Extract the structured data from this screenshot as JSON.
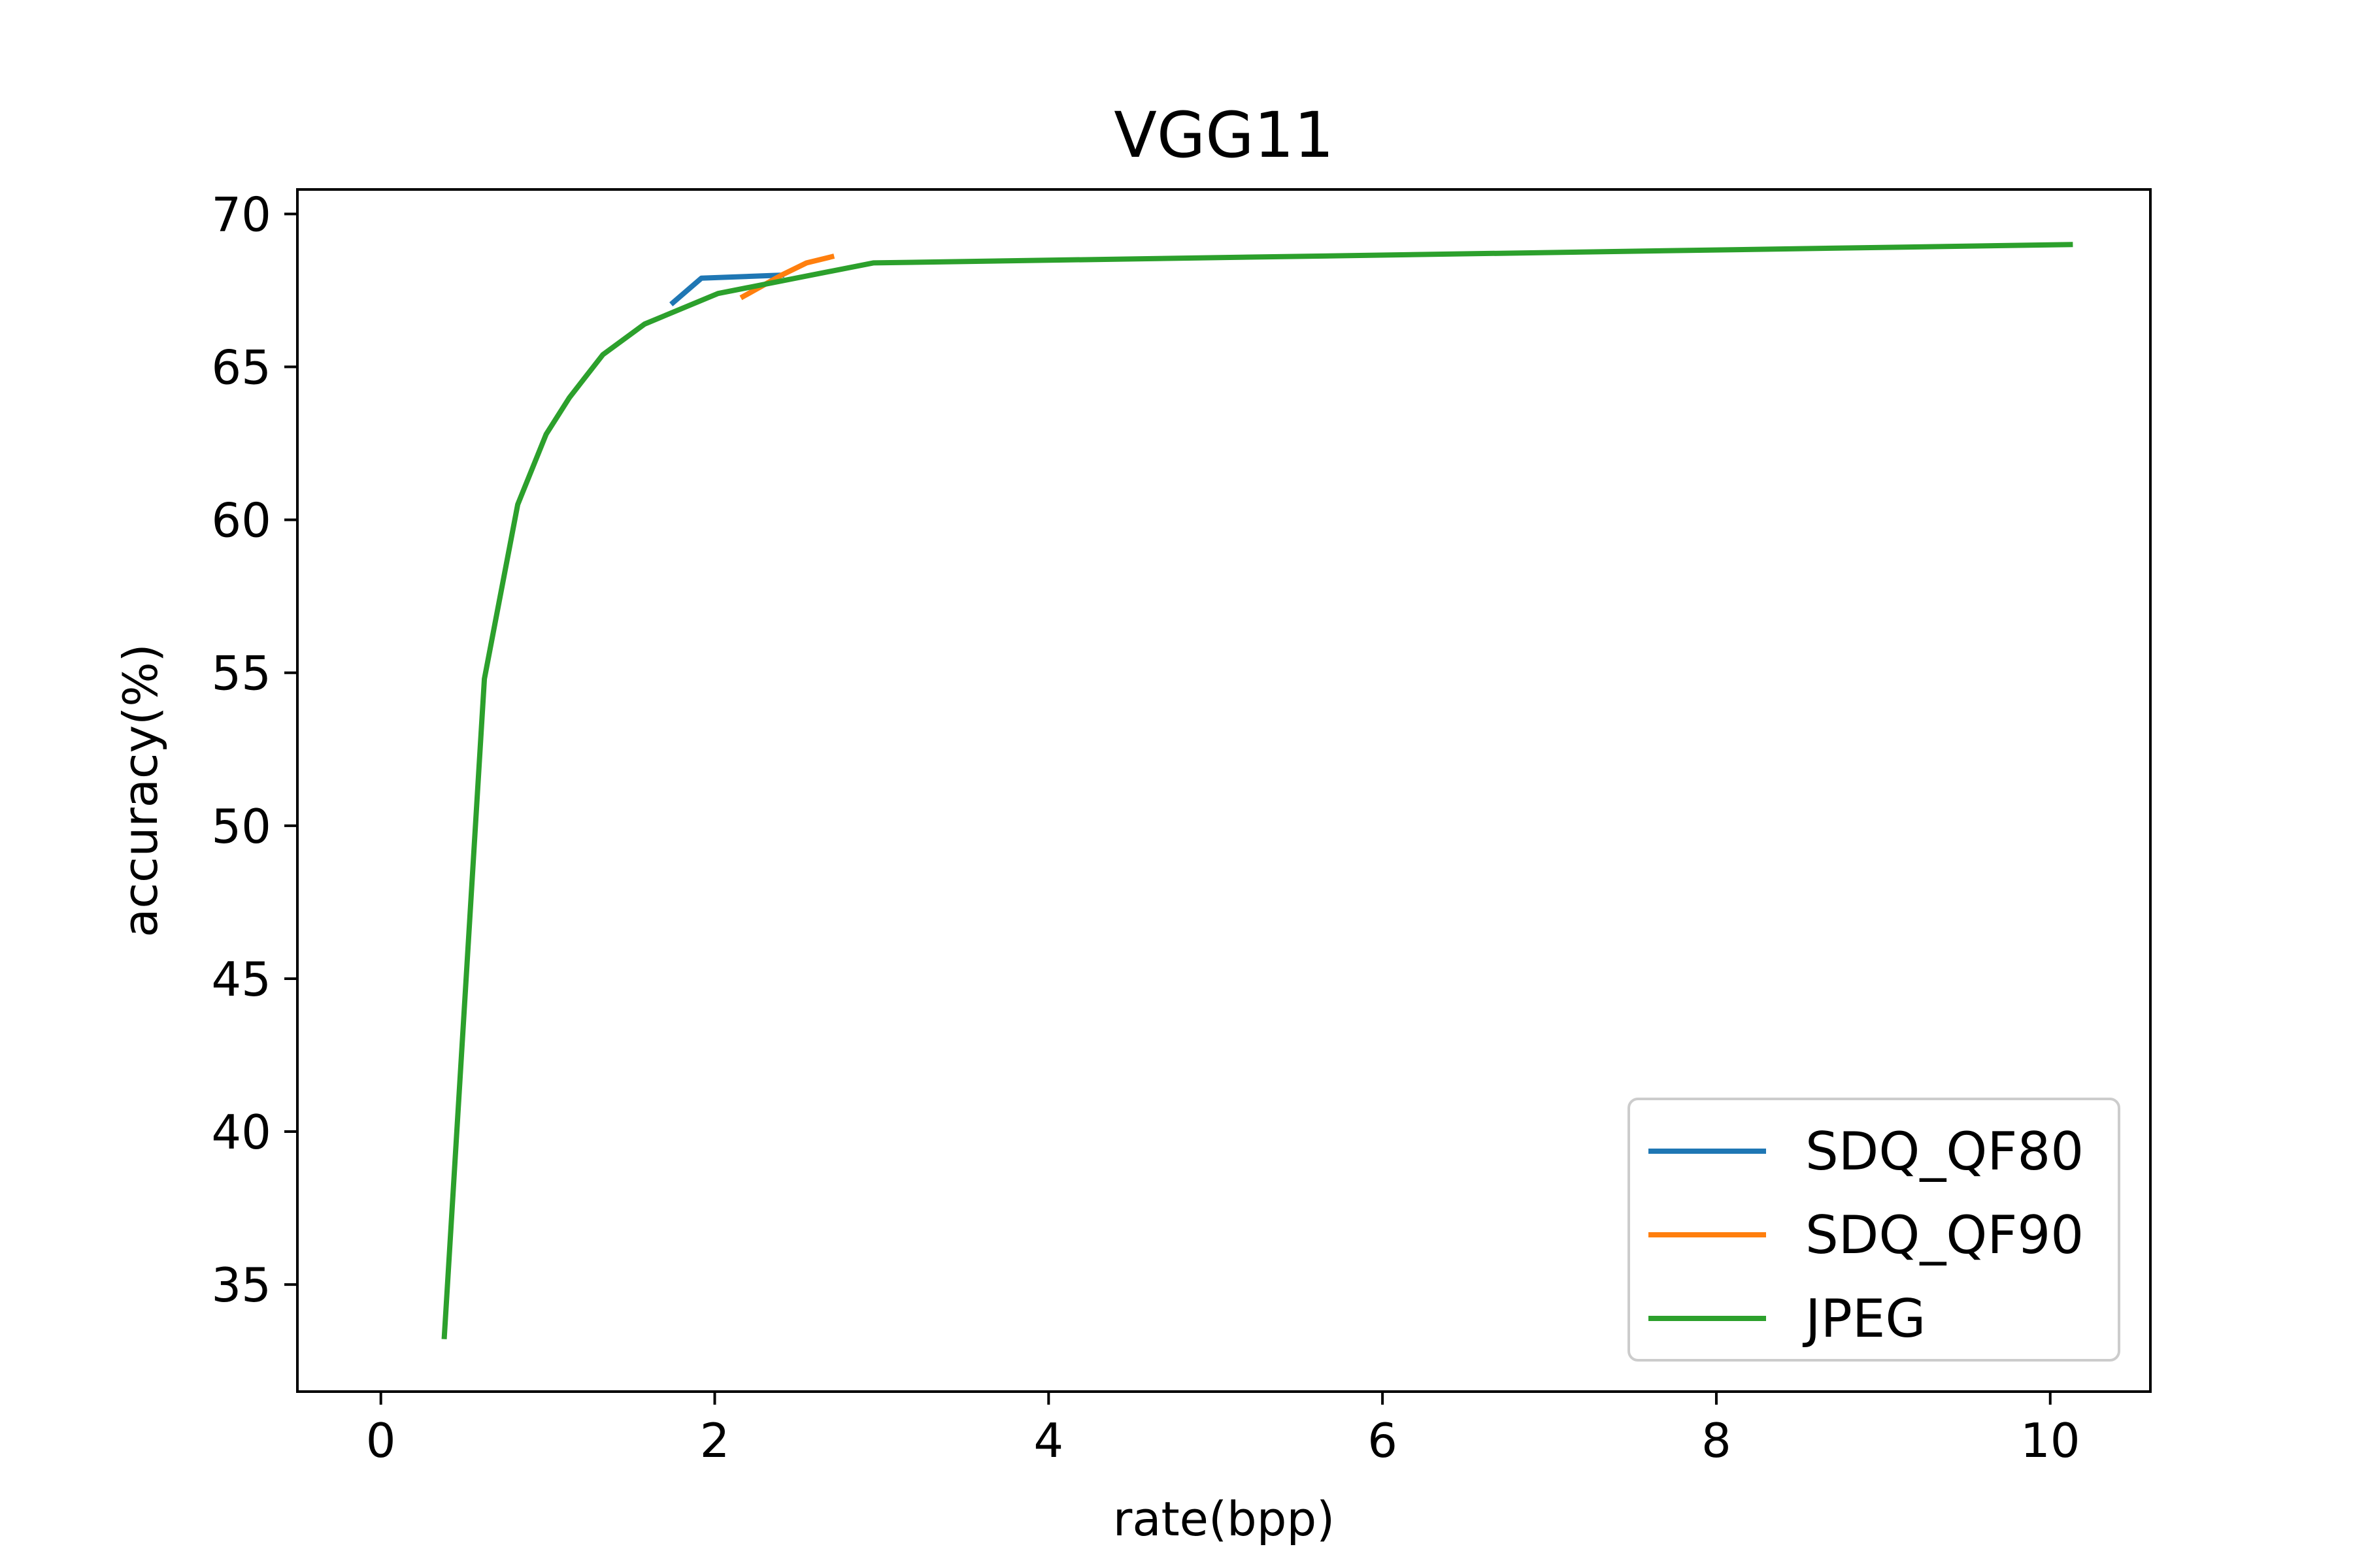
{
  "chart_data": {
    "type": "line",
    "title": "VGG11",
    "xlabel": "rate(bpp)",
    "ylabel": "accuracy(%)",
    "xlim": [
      -0.5,
      10.6
    ],
    "ylim": [
      31.5,
      70.8
    ],
    "xticks": [
      0,
      2,
      4,
      6,
      8,
      10
    ],
    "yticks": [
      35,
      40,
      45,
      50,
      55,
      60,
      65,
      70
    ],
    "grid": false,
    "legend_position": "lower-right",
    "series": [
      {
        "name": "SDQ_QF80",
        "color": "#1f77b4",
        "x": [
          1.75,
          1.92,
          2.4
        ],
        "y": [
          67.1,
          67.9,
          68.0
        ]
      },
      {
        "name": "SDQ_QF90",
        "color": "#ff7f0e",
        "x": [
          2.17,
          2.4,
          2.55,
          2.7
        ],
        "y": [
          67.3,
          68.0,
          68.4,
          68.6
        ]
      },
      {
        "name": "JPEG",
        "color": "#2ca02c",
        "x": [
          0.38,
          0.62,
          0.82,
          0.99,
          1.13,
          1.33,
          1.58,
          2.02,
          2.95,
          10.12
        ],
        "y": [
          33.3,
          54.8,
          60.5,
          62.8,
          64.0,
          65.4,
          66.4,
          67.4,
          68.4,
          69.0
        ]
      }
    ]
  }
}
